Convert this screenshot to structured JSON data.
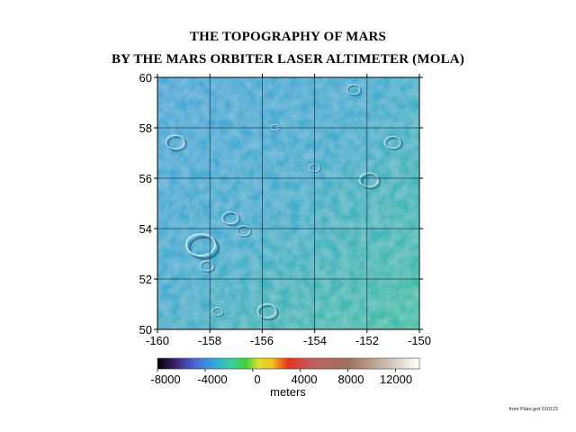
{
  "title_line_1": "THE TOPOGRAPHY OF MARS",
  "title_line_2": "BY THE MARS ORBITER LASER ALTIMETER (MOLA)",
  "map": {
    "lon_range": [
      -160,
      -150
    ],
    "lat_range": [
      50,
      60
    ],
    "x_ticks": [
      "-160",
      "-158",
      "-156",
      "-154",
      "-152",
      "-150"
    ],
    "y_ticks": [
      "50",
      "52",
      "54",
      "56",
      "58",
      "60"
    ],
    "grid_lons": [
      -158,
      -156,
      -154,
      -152
    ],
    "grid_lats": [
      52,
      54,
      56,
      58
    ],
    "surface_colors": {
      "west": "#4aa8d8",
      "center": "#44aed0",
      "east": "#40b9b4",
      "southeast": "#3fc0a6"
    },
    "grid_color": "#1f3f5a",
    "craters": [
      {
        "lon": -151.9,
        "lat": 55.9,
        "r": 0.35
      },
      {
        "lon": -155.8,
        "lat": 50.7,
        "r": 0.35
      },
      {
        "lon": -158.3,
        "lat": 53.3,
        "r": 0.55
      },
      {
        "lon": -156.7,
        "lat": 53.9,
        "r": 0.25
      },
      {
        "lon": -159.3,
        "lat": 57.4,
        "r": 0.35
      },
      {
        "lon": -151.0,
        "lat": 57.4,
        "r": 0.3
      },
      {
        "lon": -154.0,
        "lat": 56.4,
        "r": 0.2
      },
      {
        "lon": -157.2,
        "lat": 54.4,
        "r": 0.3
      },
      {
        "lon": -158.1,
        "lat": 52.5,
        "r": 0.25
      },
      {
        "lon": -152.5,
        "lat": 59.5,
        "r": 0.25
      },
      {
        "lon": -157.7,
        "lat": 50.7,
        "r": 0.2
      },
      {
        "lon": -155.5,
        "lat": 58.0,
        "r": 0.15
      }
    ]
  },
  "colorbar": {
    "min": -8000,
    "max": 14000,
    "unit": "meters",
    "tick_labels": [
      "-8000",
      "-4000",
      "0",
      "4000",
      "8000",
      "12000"
    ],
    "tick_values": [
      -8000,
      -4000,
      0,
      4000,
      8000,
      12000
    ],
    "stops": [
      {
        "value": -8000,
        "color": "#000000"
      },
      {
        "value": -6600,
        "color": "#3a1f6a"
      },
      {
        "value": -5000,
        "color": "#4a5fd0"
      },
      {
        "value": -3200,
        "color": "#33a8e0"
      },
      {
        "value": -1800,
        "color": "#3ecfa0"
      },
      {
        "value": -600,
        "color": "#40d040"
      },
      {
        "value": 500,
        "color": "#d8e030"
      },
      {
        "value": 1600,
        "color": "#f0c020"
      },
      {
        "value": 3000,
        "color": "#e63020"
      },
      {
        "value": 5000,
        "color": "#c06060"
      },
      {
        "value": 8000,
        "color": "#a07058"
      },
      {
        "value": 11000,
        "color": "#c8b8a8"
      },
      {
        "value": 14000,
        "color": "#ffffff"
      }
    ]
  },
  "source_note": "from Plate.grd 010123"
}
